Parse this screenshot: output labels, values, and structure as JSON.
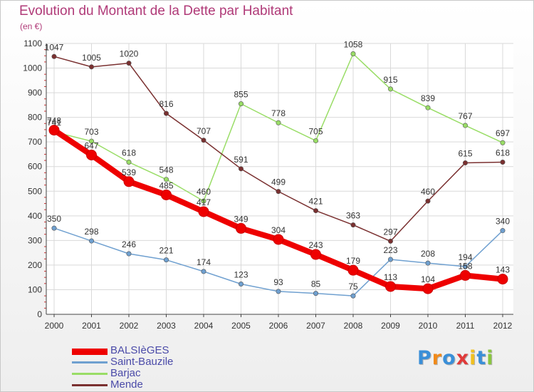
{
  "title": "Evolution du Montant de la Dette par Habitant",
  "subtitle": "(en €)",
  "logo_text": "Proxiti",
  "colors": {
    "title": "#b03a78",
    "legend_text": "#4a4aa8",
    "grid": "#d9d9d9",
    "axis": "#444444"
  },
  "chart_data": {
    "type": "line",
    "title": "Evolution du Montant de la Dette par Habitant",
    "subtitle": "(en €)",
    "x": [
      "2000",
      "2001",
      "2002",
      "2003",
      "2004",
      "2005",
      "2006",
      "2007",
      "2008",
      "2009",
      "2010",
      "2011",
      "2012"
    ],
    "ylim": [
      0,
      1100
    ],
    "yticks": [
      0,
      100,
      200,
      300,
      400,
      500,
      600,
      700,
      800,
      900,
      1000,
      1100
    ],
    "grid": true,
    "legend_position": "bottom-left",
    "series": [
      {
        "name": "BALSIèGES",
        "color": "#ee0000",
        "values": [
          748,
          647,
          539,
          485,
          417,
          349,
          304,
          243,
          179,
          113,
          104,
          158,
          143
        ]
      },
      {
        "name": "Saint-Bauzile",
        "color": "#6fa0d0",
        "values": [
          350,
          298,
          246,
          221,
          174,
          123,
          93,
          85,
          75,
          223,
          208,
          194,
          340
        ]
      },
      {
        "name": "Barjac",
        "color": "#99dd66",
        "values": [
          741,
          703,
          618,
          548,
          460,
          855,
          778,
          705,
          1058,
          915,
          839,
          767,
          697
        ]
      },
      {
        "name": "Mende",
        "color": "#7a3030",
        "values": [
          1047,
          1005,
          1020,
          816,
          707,
          591,
          499,
          421,
          363,
          297,
          460,
          615,
          618
        ]
      }
    ]
  }
}
